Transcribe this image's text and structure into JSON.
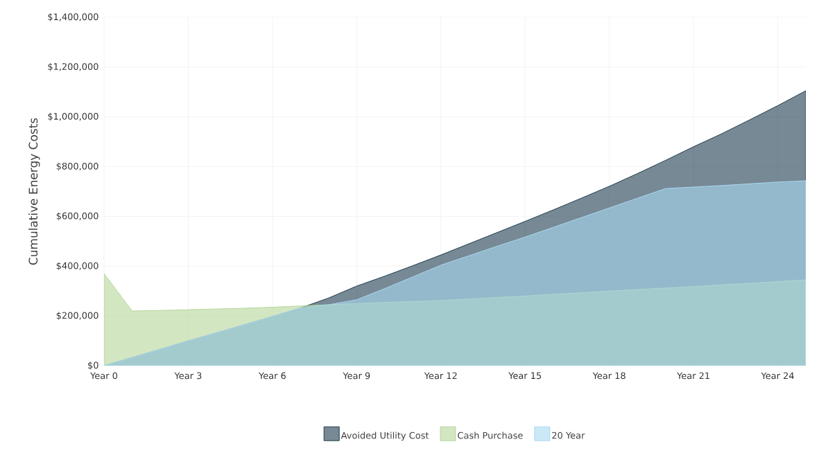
{
  "chart_data": {
    "type": "area",
    "ylabel": "Cumulative Energy Costs",
    "categories": [
      "Year 0",
      null,
      null,
      "Year 3",
      null,
      null,
      "Year 6",
      null,
      null,
      "Year 9",
      null,
      null,
      "Year 12",
      null,
      null,
      "Year 15",
      null,
      null,
      "Year 18",
      null,
      null,
      "Year 21",
      null,
      null,
      "Year 24",
      null
    ],
    "series": [
      {
        "name": "Avoided Utility Cost",
        "color": "#1d3a4c",
        "values": [
          0,
          33000,
          66000,
          100000,
          132000,
          165000,
          198000,
          232000,
          272000,
          320000,
          360000,
          402000,
          445000,
          490000,
          535000,
          580000,
          626000,
          673000,
          721000,
          772000,
          825000,
          880000,
          932000,
          988000,
          1045000,
          1105000
        ]
      },
      {
        "name": "Cash Purchase",
        "color": "#b5d69a",
        "values": [
          370000,
          220000,
          222000,
          225000,
          228000,
          231000,
          235000,
          240000,
          245000,
          250000,
          254000,
          258000,
          262000,
          268000,
          274000,
          280000,
          287000,
          293000,
          300000,
          306000,
          312000,
          318000,
          325000,
          331000,
          338000,
          345000
        ]
      },
      {
        "name": "20 Year",
        "color": "#a9d8f2",
        "values": [
          0,
          33000,
          66000,
          100000,
          132000,
          165000,
          198000,
          232000,
          245000,
          265000,
          310000,
          357000,
          404000,
          442000,
          480000,
          517000,
          556000,
          595000,
          634000,
          673000,
          712000,
          718000,
          724000,
          731000,
          738000,
          743000
        ]
      }
    ],
    "ylim": [
      0,
      1400000
    ],
    "yticks": [
      {
        "value": 0,
        "label": "$0"
      },
      {
        "value": 200000,
        "label": "$200,000"
      },
      {
        "value": 400000,
        "label": "$400,000"
      },
      {
        "value": 600000,
        "label": "$600,000"
      },
      {
        "value": 800000,
        "label": "$800,000"
      },
      {
        "value": 1000000,
        "label": "$1,000,000"
      },
      {
        "value": 1200000,
        "label": "$1,200,000"
      },
      {
        "value": 1400000,
        "label": "$1,400,000"
      }
    ],
    "grid": true,
    "legend": "bottom"
  }
}
